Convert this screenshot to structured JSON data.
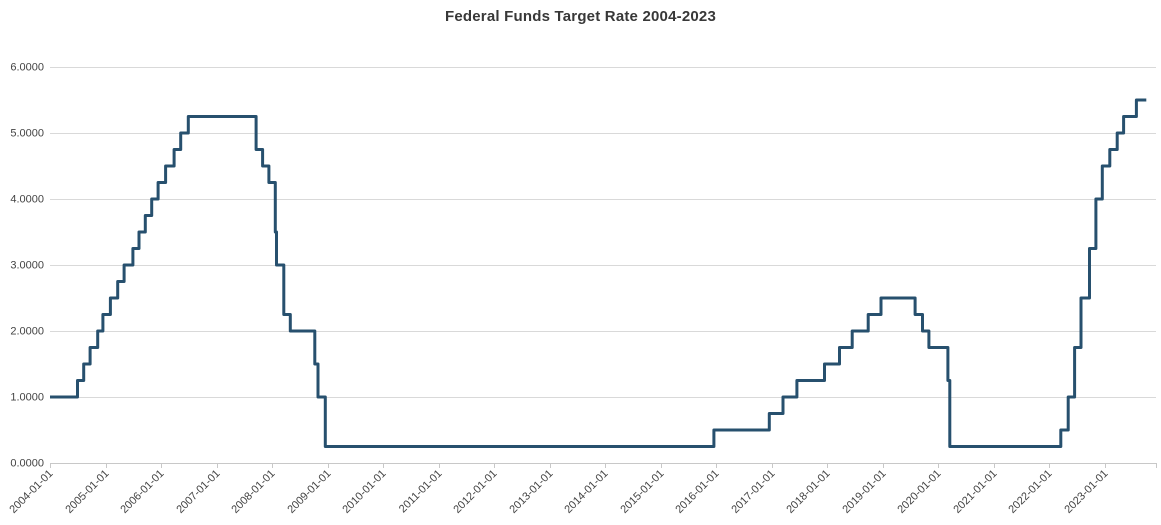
{
  "chart_data": {
    "type": "line",
    "title": "Federal Funds Target Rate 2004-2023",
    "series": [
      {
        "name": "Federal Funds Target Rate",
        "step": true,
        "points": [
          [
            "2004-01-01",
            1.0
          ],
          [
            "2004-06-30",
            1.25
          ],
          [
            "2004-08-10",
            1.5
          ],
          [
            "2004-09-21",
            1.75
          ],
          [
            "2004-11-10",
            2.0
          ],
          [
            "2004-12-14",
            2.25
          ],
          [
            "2005-02-02",
            2.5
          ],
          [
            "2005-03-22",
            2.75
          ],
          [
            "2005-05-03",
            3.0
          ],
          [
            "2005-06-30",
            3.25
          ],
          [
            "2005-08-09",
            3.5
          ],
          [
            "2005-09-20",
            3.75
          ],
          [
            "2005-11-01",
            4.0
          ],
          [
            "2005-12-13",
            4.25
          ],
          [
            "2006-01-31",
            4.5
          ],
          [
            "2006-03-28",
            4.75
          ],
          [
            "2006-05-10",
            5.0
          ],
          [
            "2006-06-29",
            5.25
          ],
          [
            "2007-09-18",
            4.75
          ],
          [
            "2007-10-31",
            4.5
          ],
          [
            "2007-12-11",
            4.25
          ],
          [
            "2008-01-22",
            3.5
          ],
          [
            "2008-01-30",
            3.0
          ],
          [
            "2008-03-18",
            2.25
          ],
          [
            "2008-04-30",
            2.0
          ],
          [
            "2008-10-08",
            1.5
          ],
          [
            "2008-10-29",
            1.0
          ],
          [
            "2008-12-16",
            0.25
          ],
          [
            "2015-12-17",
            0.5
          ],
          [
            "2016-12-15",
            0.75
          ],
          [
            "2017-03-16",
            1.0
          ],
          [
            "2017-06-15",
            1.25
          ],
          [
            "2017-12-14",
            1.5
          ],
          [
            "2018-03-22",
            1.75
          ],
          [
            "2018-06-14",
            2.0
          ],
          [
            "2018-09-27",
            2.25
          ],
          [
            "2018-12-20",
            2.5
          ],
          [
            "2019-08-01",
            2.25
          ],
          [
            "2019-09-19",
            2.0
          ],
          [
            "2019-10-31",
            1.75
          ],
          [
            "2020-03-04",
            1.25
          ],
          [
            "2020-03-16",
            0.25
          ],
          [
            "2022-03-17",
            0.5
          ],
          [
            "2022-05-05",
            1.0
          ],
          [
            "2022-06-16",
            1.75
          ],
          [
            "2022-07-28",
            2.5
          ],
          [
            "2022-09-22",
            3.25
          ],
          [
            "2022-11-03",
            4.0
          ],
          [
            "2022-12-15",
            4.5
          ],
          [
            "2023-02-02",
            4.75
          ],
          [
            "2023-03-23",
            5.0
          ],
          [
            "2023-05-04",
            5.25
          ],
          [
            "2023-07-27",
            5.5
          ],
          [
            "2023-09-30",
            5.5
          ]
        ]
      }
    ],
    "xlabel": "",
    "ylabel": "",
    "x_tick_labels": [
      "2004-01-01",
      "2005-01-01",
      "2006-01-01",
      "2007-01-01",
      "2008-01-01",
      "2009-01-01",
      "2010-01-01",
      "2011-01-01",
      "2012-01-01",
      "2013-01-01",
      "2014-01-01",
      "2015-01-01",
      "2016-01-01",
      "2017-01-01",
      "2018-01-01",
      "2019-01-01",
      "2020-01-01",
      "2021-01-01",
      "2022-01-01",
      "2023-01-01"
    ],
    "y_tick_labels": [
      "0.0000",
      "1.0000",
      "2.0000",
      "3.0000",
      "4.0000",
      "5.0000",
      "6.0000"
    ],
    "ylim": [
      0,
      6
    ],
    "grid": "horizontal",
    "legend": "none"
  },
  "colors": {
    "line": "#27506e",
    "gridline": "#d9d9d9",
    "axis": "#c8c8c8",
    "tick": "#c8c8c8",
    "label": "#444444",
    "title": "#383838",
    "background": "#ffffff"
  }
}
